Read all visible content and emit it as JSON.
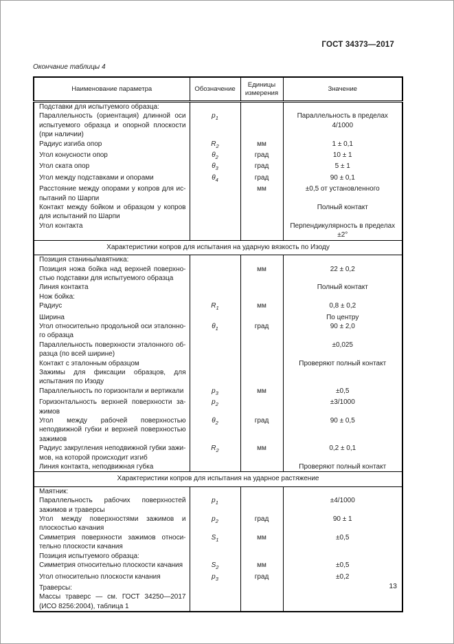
{
  "page": {
    "header": "ГОСТ 34373—2017",
    "caption": "Окончание таблицы 4",
    "page_number": "13"
  },
  "table": {
    "columns": [
      "Наименование параметра",
      "Обозначение",
      "Единицы измерения",
      "Значение"
    ],
    "sections": [
      {
        "title": "",
        "rows": [
          {
            "name": "Подставки для испытуемого образца:",
            "sym": "",
            "sub": "",
            "unit": "",
            "value": ""
          },
          {
            "name": "Параллельность (ориентация) длинной оси испытуемого образца и опорной плоскости (при наличии)",
            "sym": "p",
            "sub": "1",
            "unit": "",
            "value": "Параллельность в пределах\n4/1000"
          },
          {
            "name": "Радиус изгиба опор",
            "sym": "R",
            "sub": "2",
            "unit": "мм",
            "value": "1 ± 0,1"
          },
          {
            "name": "Угол конусности опор",
            "sym": "θ",
            "sub": "2",
            "unit": "град",
            "value": "10 ± 1"
          },
          {
            "name": "Угол ската опор",
            "sym": "θ",
            "sub": "3",
            "unit": "град",
            "value": "5 ± 1"
          },
          {
            "name": "Угол между подставками и опорами",
            "sym": "θ",
            "sub": "4",
            "unit": "град",
            "value": "90 ± 0,1"
          },
          {
            "name": "Расстояние между опорами у копров для ис­пытаний по Шарпи",
            "sym": "",
            "sub": "",
            "unit": "мм",
            "value": "±0,5 от установленного"
          },
          {
            "name": "Контакт между бойком и образцом у копров для испытаний по Шарпи",
            "sym": "",
            "sub": "",
            "unit": "",
            "value": "Полный контакт"
          },
          {
            "name": "Угол контакта",
            "sym": "",
            "sub": "",
            "unit": "",
            "value": "Перпендикулярность в пределах\n±2°"
          }
        ]
      },
      {
        "title": "Характеристики копров для испытания на ударную вязкость по Изоду",
        "rows": [
          {
            "name": "Позиция станины/маятника:",
            "sym": "",
            "sub": "",
            "unit": "",
            "value": ""
          },
          {
            "name": "Позиция ножа бойка над верхней поверхно­стью подставки для испытуемого образца",
            "sym": "",
            "sub": "",
            "unit": "мм",
            "value": "22 ± 0,2"
          },
          {
            "name": "Линия контакта",
            "sym": "",
            "sub": "",
            "unit": "",
            "value": "Полный контакт"
          },
          {
            "name": "Нож бойка:",
            "sym": "",
            "sub": "",
            "unit": "",
            "value": ""
          },
          {
            "name": "Радиус",
            "sym": "R",
            "sub": "1",
            "unit": "мм",
            "value": "0,8 ± 0,2"
          },
          {
            "name": "Ширина",
            "sym": "",
            "sub": "",
            "unit": "",
            "value": "По центру"
          },
          {
            "name": "Угол относительно продольной оси эталонно­го образца",
            "sym": "θ",
            "sub": "1",
            "unit": "град",
            "value": "90 ± 2,0"
          },
          {
            "name": "Параллельность поверхности эталонного об­разца (по всей ширине)",
            "sym": "",
            "sub": "",
            "unit": "",
            "value": "±0,025"
          },
          {
            "name": "Контакт с эталонным образцом",
            "sym": "",
            "sub": "",
            "unit": "",
            "value": "Проверяют полный контакт"
          },
          {
            "name": "Зажимы для фиксации образцов, для испыта­ния по Изоду",
            "sym": "",
            "sub": "",
            "unit": "",
            "value": ""
          },
          {
            "name": "Параллельность по горизонтали и вертикали",
            "sym": "p",
            "sub": "3",
            "unit": "мм",
            "value": "±0,5"
          },
          {
            "name": "Горизонтальность верхней поверхности за­жимов",
            "sym": "p",
            "sub": "2",
            "unit": "",
            "value": "±3/1000"
          },
          {
            "name": "Угол между рабочей поверхностью неподвиж­ной губки и верхней поверхностью зажимов",
            "sym": "θ",
            "sub": "2",
            "unit": "град",
            "value": "90 ± 0,5"
          },
          {
            "name": "Радиус закругления неподвижной губки зажи­мов, на которой происходит изгиб",
            "sym": "R",
            "sub": "2",
            "unit": "мм",
            "value": "0,2 ± 0,1"
          },
          {
            "name": "Линия контакта, неподвижная губка",
            "sym": "",
            "sub": "",
            "unit": "",
            "value": "Проверяют полный контакт"
          }
        ]
      },
      {
        "title": "Характеристики копров для испытания на ударное растяжение",
        "rows": [
          {
            "name": "Маятник:",
            "sym": "",
            "sub": "",
            "unit": "",
            "value": ""
          },
          {
            "name": "Параллельность рабочих поверхностей зажи­мов и траверсы",
            "sym": "p",
            "sub": "1",
            "unit": "",
            "value": "±4/1000"
          },
          {
            "name": "Угол между поверхностями зажимов и плоско­стью качания",
            "sym": "p",
            "sub": "2",
            "unit": "град",
            "value": "90 ± 1"
          },
          {
            "name": "Симметрия поверхности зажимов относи­тельно плоскости качания",
            "sym": "S",
            "sub": "1",
            "unit": "мм",
            "value": "±0,5"
          },
          {
            "name": "Позиция испытуемого образца:",
            "sym": "",
            "sub": "",
            "unit": "",
            "value": ""
          },
          {
            "name": "Симметрия относительно плоскости качания",
            "sym": "S",
            "sub": "2",
            "unit": "мм",
            "value": "±0,5"
          },
          {
            "name": "Угол относительно плоскости качания",
            "sym": "p",
            "sub": "3",
            "unit": "град",
            "value": "±0,2"
          },
          {
            "name": "Траверсы:",
            "sym": "",
            "sub": "",
            "unit": "",
            "value": ""
          },
          {
            "name": "Массы траверс — см. ГОСТ 34250—2017 (ИСО 8256:2004), таблица 1",
            "sym": "",
            "sub": "",
            "unit": "",
            "value": ""
          }
        ]
      }
    ]
  }
}
